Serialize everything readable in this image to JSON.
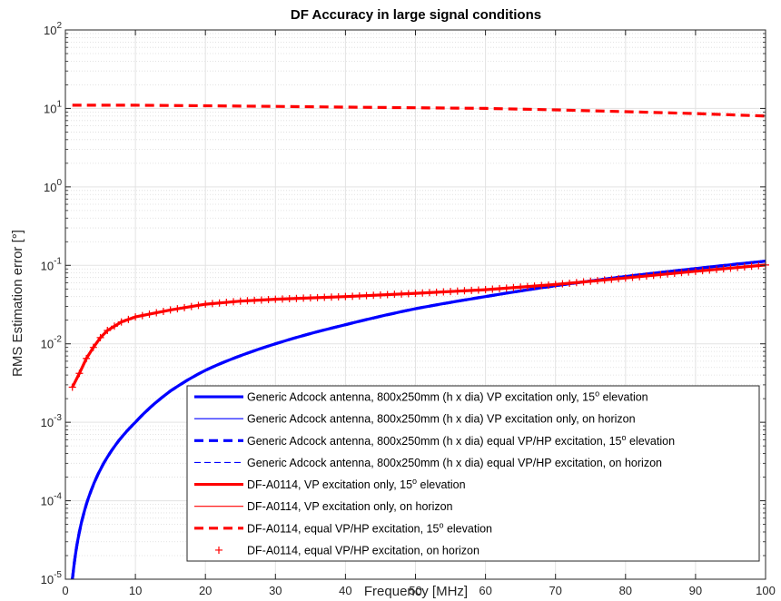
{
  "chart_data": {
    "type": "line",
    "title": "DF Accuracy in large signal conditions",
    "xlabel": "Frequency [MHz]",
    "ylabel": "RMS Estimation error [°]",
    "xlim": [
      0,
      100
    ],
    "ylim": [
      1e-05,
      100
    ],
    "yscale": "log",
    "grid": true,
    "minor_grid": true,
    "legend_position": "bottom-right",
    "x_ticks": [
      "0",
      "10",
      "20",
      "30",
      "40",
      "50",
      "60",
      "70",
      "80",
      "90",
      "100"
    ],
    "y_ticks": [
      {
        "base": "10",
        "exp": "-5"
      },
      {
        "base": "10",
        "exp": "-4"
      },
      {
        "base": "10",
        "exp": "-3"
      },
      {
        "base": "10",
        "exp": "-2"
      },
      {
        "base": "10",
        "exp": "-1"
      },
      {
        "base": "10",
        "exp": "0"
      },
      {
        "base": "10",
        "exp": "1"
      },
      {
        "base": "10",
        "exp": "2"
      }
    ],
    "series": [
      {
        "name": "Generic Adcock antenna, 800x250mm (h x dia) VP excitation only, 15° elevation",
        "label_main": "Generic Adcock antenna, 800x250mm (h x dia) VP excitation only, 15",
        "label_sup": "o",
        "label_tail": " elevation",
        "color": "#0000ff",
        "style": "solid",
        "weight": "thick",
        "x": [
          1,
          2,
          3,
          5,
          8,
          10,
          15,
          20,
          30,
          40,
          50,
          60,
          70,
          80,
          90,
          100
        ],
        "y": [
          1e-05,
          4e-05,
          9e-05,
          0.00025,
          0.00064,
          0.001,
          0.0025,
          0.0046,
          0.01,
          0.0175,
          0.028,
          0.04,
          0.055,
          0.072,
          0.091,
          0.113
        ]
      },
      {
        "name": "Generic Adcock antenna, 800x250mm (h x dia) VP excitation only, on horizon",
        "label_main": "Generic Adcock antenna, 800x250mm (h x dia) VP excitation only, on horizon",
        "label_sup": "",
        "label_tail": "",
        "color": "#0000ff",
        "style": "solid",
        "weight": "thin",
        "x": [
          1,
          2,
          3,
          5,
          8,
          10,
          15,
          20,
          30,
          40,
          50,
          60,
          70,
          80,
          90,
          100
        ],
        "y": [
          1e-05,
          4e-05,
          9e-05,
          0.00025,
          0.00064,
          0.001,
          0.0025,
          0.0046,
          0.01,
          0.0175,
          0.028,
          0.04,
          0.055,
          0.072,
          0.091,
          0.113
        ]
      },
      {
        "name": "Generic Adcock antenna, 800x250mm (h x dia) equal VP/HP excitation, 15° elevation",
        "label_main": "Generic Adcock antenna, 800x250mm (h x dia) equal VP/HP excitation, 15",
        "label_sup": "o",
        "label_tail": " elevation",
        "color": "#0000ff",
        "style": "dashed",
        "weight": "thick",
        "x": [
          1,
          2,
          3,
          5,
          8,
          10,
          15,
          20,
          30,
          40,
          50,
          60,
          70,
          80,
          90,
          100
        ],
        "y": [
          1e-05,
          4e-05,
          9e-05,
          0.00025,
          0.00064,
          0.001,
          0.0025,
          0.0046,
          0.01,
          0.0175,
          0.028,
          0.04,
          0.055,
          0.072,
          0.091,
          0.113
        ]
      },
      {
        "name": "Generic Adcock antenna, 800x250mm (h x dia) equal VP/HP excitation, on horizon",
        "label_main": "Generic Adcock antenna, 800x250mm (h x dia) equal VP/HP excitation, on horizon",
        "label_sup": "",
        "label_tail": "",
        "color": "#0000ff",
        "style": "dashed",
        "weight": "thin",
        "x": [
          1,
          2,
          3,
          5,
          8,
          10,
          15,
          20,
          30,
          40,
          50,
          60,
          70,
          80,
          90,
          100
        ],
        "y": [
          1e-05,
          4e-05,
          9e-05,
          0.00025,
          0.00064,
          0.001,
          0.0025,
          0.0046,
          0.01,
          0.0175,
          0.028,
          0.04,
          0.055,
          0.072,
          0.091,
          0.113
        ]
      },
      {
        "name": "DF-A0114, VP excitation only, 15° elevation",
        "label_main": "DF-A0114, VP excitation only, 15",
        "label_sup": "o",
        "label_tail": " elevation",
        "color": "#ff0000",
        "style": "solid",
        "weight": "thick",
        "x": [
          1,
          2,
          3,
          4,
          5,
          6,
          8,
          10,
          15,
          20,
          25,
          30,
          40,
          50,
          60,
          70,
          80,
          90,
          100
        ],
        "y": [
          0.0028,
          0.0042,
          0.0065,
          0.009,
          0.012,
          0.0148,
          0.019,
          0.022,
          0.027,
          0.032,
          0.035,
          0.037,
          0.04,
          0.044,
          0.049,
          0.057,
          0.069,
          0.084,
          0.101
        ]
      },
      {
        "name": "DF-A0114, VP excitation only, on horizon",
        "label_main": "DF-A0114, VP excitation only, on horizon",
        "label_sup": "",
        "label_tail": "",
        "color": "#ff0000",
        "style": "solid",
        "weight": "thin",
        "x": [
          1,
          2,
          3,
          4,
          5,
          6,
          8,
          10,
          15,
          20,
          25,
          30,
          40,
          50,
          60,
          70,
          80,
          90,
          100
        ],
        "y": [
          0.0028,
          0.0042,
          0.0065,
          0.009,
          0.012,
          0.0148,
          0.019,
          0.022,
          0.027,
          0.032,
          0.035,
          0.037,
          0.04,
          0.044,
          0.049,
          0.057,
          0.069,
          0.084,
          0.101
        ]
      },
      {
        "name": "DF-A0114, equal VP/HP excitation, 15° elevation",
        "label_main": "DF-A0114, equal VP/HP excitation, 15",
        "label_sup": "o",
        "label_tail": " elevation",
        "color": "#ff0000",
        "style": "dashed",
        "weight": "thick",
        "x": [
          1,
          10,
          20,
          30,
          40,
          50,
          60,
          70,
          80,
          90,
          100
        ],
        "y": [
          11,
          11,
          10.8,
          10.6,
          10.4,
          10.2,
          10.0,
          9.6,
          9.1,
          8.6,
          8.0
        ]
      },
      {
        "name": "DF-A0114, equal VP/HP excitation, on horizon",
        "label_main": "DF-A0114, equal VP/HP excitation, on horizon",
        "label_sup": "",
        "label_tail": "",
        "color": "#ff0000",
        "style": "plus",
        "weight": "marker",
        "x": [
          1,
          2,
          3,
          4,
          5,
          6,
          8,
          10,
          15,
          20,
          25,
          30,
          40,
          50,
          60,
          70,
          80,
          90,
          100
        ],
        "y": [
          0.0028,
          0.0042,
          0.0065,
          0.009,
          0.012,
          0.0148,
          0.019,
          0.022,
          0.027,
          0.032,
          0.035,
          0.037,
          0.04,
          0.044,
          0.049,
          0.057,
          0.069,
          0.084,
          0.101
        ]
      }
    ]
  }
}
